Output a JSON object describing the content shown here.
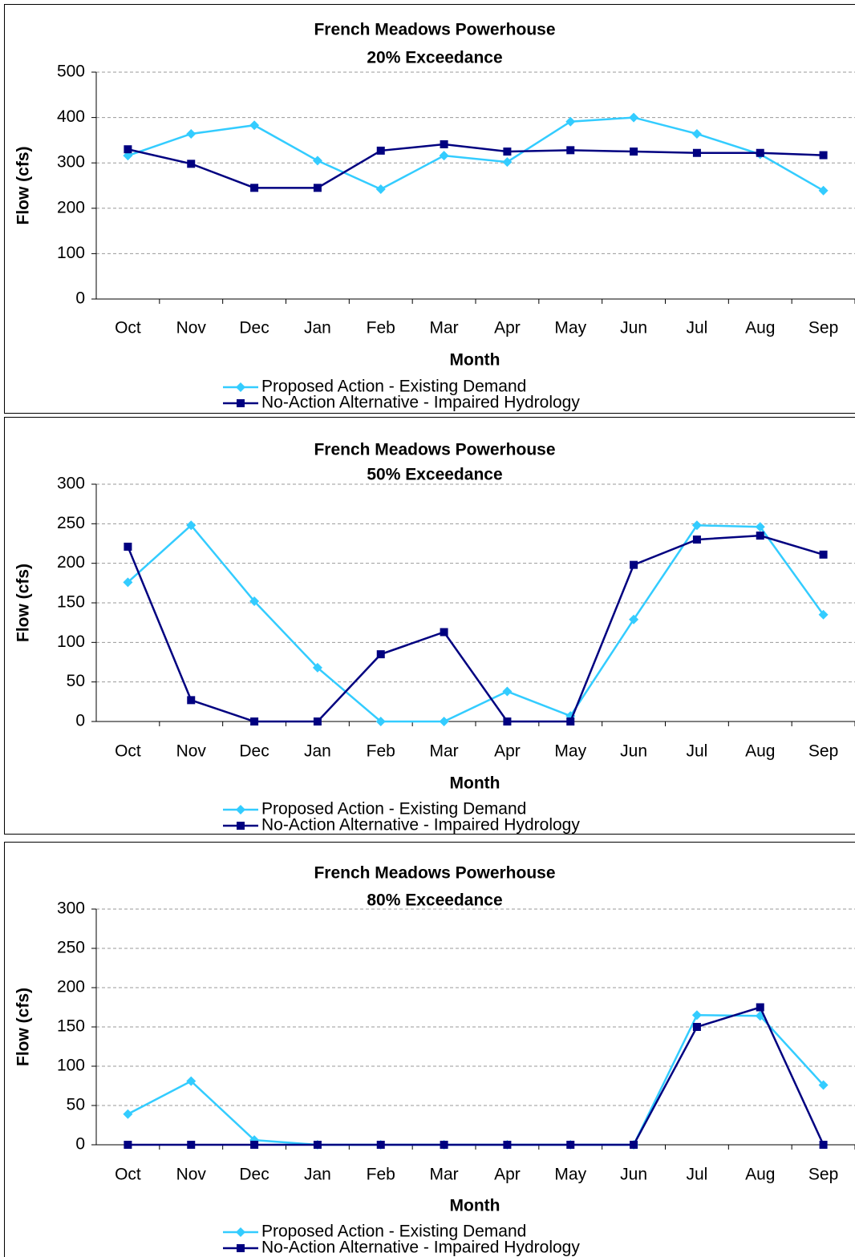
{
  "chart_data": [
    {
      "type": "line",
      "title": "French Meadows Powerhouse",
      "subtitle": "20% Exceedance",
      "x_label": "Month",
      "y_label": "Flow (cfs)",
      "categories": [
        "Oct",
        "Nov",
        "Dec",
        "Jan",
        "Feb",
        "Mar",
        "Apr",
        "May",
        "Jun",
        "Jul",
        "Aug",
        "Sep"
      ],
      "series": [
        {
          "name": "Proposed Action - Existing Demand",
          "color": "#33ccff",
          "marker": "diamond",
          "values": [
            316,
            364,
            383,
            305,
            242,
            316,
            302,
            391,
            400,
            364,
            319,
            239
          ]
        },
        {
          "name": "No-Action Alternative - Impaired Hydrology",
          "color": "#000080",
          "marker": "square",
          "values": [
            330,
            298,
            245,
            245,
            327,
            341,
            325,
            328,
            325,
            322,
            322,
            317
          ]
        }
      ],
      "ylim": [
        0,
        500
      ],
      "yticks": [
        0,
        100,
        200,
        300,
        400,
        500
      ],
      "grid": true
    },
    {
      "type": "line",
      "title": "French Meadows Powerhouse",
      "subtitle": "50% Exceedance",
      "x_label": "Month",
      "y_label": "Flow (cfs)",
      "categories": [
        "Oct",
        "Nov",
        "Dec",
        "Jan",
        "Feb",
        "Mar",
        "Apr",
        "May",
        "Jun",
        "Jul",
        "Aug",
        "Sep"
      ],
      "series": [
        {
          "name": "Proposed Action - Existing Demand",
          "color": "#33ccff",
          "marker": "diamond",
          "values": [
            176,
            248,
            152,
            68,
            0,
            0,
            38,
            7,
            129,
            248,
            246,
            135
          ]
        },
        {
          "name": "No-Action Alternative - Impaired Hydrology",
          "color": "#000080",
          "marker": "square",
          "values": [
            221,
            27,
            0,
            0,
            85,
            113,
            0,
            0,
            198,
            230,
            235,
            211
          ]
        }
      ],
      "ylim": [
        0,
        300
      ],
      "yticks": [
        0,
        50,
        100,
        150,
        200,
        250,
        300
      ],
      "grid": true
    },
    {
      "type": "line",
      "title": "French Meadows Powerhouse",
      "subtitle": "80% Exceedance",
      "x_label": "Month",
      "y_label": "Flow (cfs)",
      "categories": [
        "Oct",
        "Nov",
        "Dec",
        "Jan",
        "Feb",
        "Mar",
        "Apr",
        "May",
        "Jun",
        "Jul",
        "Aug",
        "Sep"
      ],
      "series": [
        {
          "name": "Proposed Action - Existing Demand",
          "color": "#33ccff",
          "marker": "diamond",
          "values": [
            39,
            81,
            6,
            0,
            0,
            0,
            0,
            0,
            0,
            165,
            164,
            76
          ]
        },
        {
          "name": "No-Action Alternative - Impaired Hydrology",
          "color": "#000080",
          "marker": "square",
          "values": [
            0,
            0,
            0,
            0,
            0,
            0,
            0,
            0,
            0,
            150,
            175,
            0
          ]
        }
      ],
      "ylim": [
        0,
        300
      ],
      "yticks": [
        0,
        50,
        100,
        150,
        200,
        250,
        300
      ],
      "grid": true
    }
  ]
}
